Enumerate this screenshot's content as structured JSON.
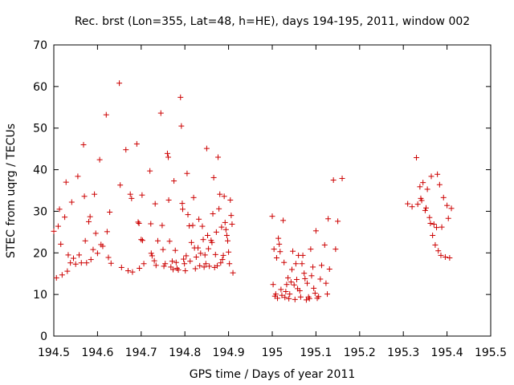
{
  "chart_data": {
    "type": "scatter",
    "title": "Rec. brst (Lon=355, Lat=48, h=HE), days 194-195, 2011, window 002",
    "xlabel": "GPS time / Days of year 2011",
    "ylabel": "STEC from uqrg / TECUs",
    "xlim": [
      194.5,
      195.5
    ],
    "ylim": [
      0,
      70
    ],
    "xticks": [
      194.5,
      194.6,
      194.7,
      194.8,
      194.9,
      195.0,
      195.1,
      195.2,
      195.3,
      195.4,
      195.5
    ],
    "xtick_labels": [
      "194.5",
      "194.6",
      "194.7",
      "194.8",
      "194.9",
      "195",
      "195.1",
      "195.2",
      "195.3",
      "195.4",
      "195.5"
    ],
    "yticks": [
      0,
      10,
      20,
      30,
      40,
      50,
      60,
      70
    ],
    "ytick_labels": [
      "0",
      "10",
      "20",
      "30",
      "40",
      "50",
      "60",
      "70"
    ],
    "grid": false,
    "marker": "+",
    "marker_color": "#cc0000",
    "series": [
      {
        "name": "STEC",
        "points": [
          [
            194.5,
            25.2
          ],
          [
            194.506,
            14.0
          ],
          [
            194.51,
            26.4
          ],
          [
            194.513,
            30.5
          ],
          [
            194.516,
            22.1
          ],
          [
            194.519,
            14.7
          ],
          [
            194.525,
            28.6
          ],
          [
            194.528,
            37.0
          ],
          [
            194.531,
            15.6
          ],
          [
            194.533,
            19.5
          ],
          [
            194.538,
            17.6
          ],
          [
            194.541,
            32.2
          ],
          [
            194.545,
            18.7
          ],
          [
            194.55,
            17.3
          ],
          [
            194.555,
            38.4
          ],
          [
            194.558,
            19.5
          ],
          [
            194.563,
            17.6
          ],
          [
            194.568,
            46.0
          ],
          [
            194.57,
            33.6
          ],
          [
            194.572,
            22.9
          ],
          [
            194.575,
            17.6
          ],
          [
            194.58,
            27.5
          ],
          [
            194.583,
            28.7
          ],
          [
            194.585,
            18.4
          ],
          [
            194.59,
            20.8
          ],
          [
            194.593,
            34.1
          ],
          [
            194.596,
            24.7
          ],
          [
            194.6,
            19.9
          ],
          [
            194.605,
            42.4
          ],
          [
            194.608,
            22.0
          ],
          [
            194.612,
            21.6
          ],
          [
            194.62,
            53.2
          ],
          [
            194.622,
            25.1
          ],
          [
            194.625,
            18.9
          ],
          [
            194.628,
            29.8
          ],
          [
            194.631,
            17.5
          ],
          [
            194.65,
            60.8
          ],
          [
            194.652,
            36.3
          ],
          [
            194.655,
            16.5
          ],
          [
            194.665,
            44.8
          ],
          [
            194.67,
            15.7
          ],
          [
            194.675,
            34.1
          ],
          [
            194.678,
            33.1
          ],
          [
            194.68,
            15.4
          ],
          [
            194.69,
            46.2
          ],
          [
            194.693,
            27.4
          ],
          [
            194.695,
            27.1
          ],
          [
            194.696,
            16.3
          ],
          [
            194.7,
            23.2
          ],
          [
            194.702,
            33.9
          ],
          [
            194.703,
            23.0
          ],
          [
            194.706,
            17.4
          ],
          [
            194.72,
            39.7
          ],
          [
            194.722,
            27.0
          ],
          [
            194.723,
            19.9
          ],
          [
            194.725,
            19.3
          ],
          [
            194.73,
            18.1
          ],
          [
            194.732,
            31.8
          ],
          [
            194.734,
            17.0
          ],
          [
            194.738,
            22.9
          ],
          [
            194.745,
            53.6
          ],
          [
            194.748,
            26.6
          ],
          [
            194.75,
            20.8
          ],
          [
            194.752,
            16.8
          ],
          [
            194.755,
            17.4
          ],
          [
            194.76,
            43.9
          ],
          [
            194.762,
            43.0
          ],
          [
            194.763,
            32.7
          ],
          [
            194.765,
            22.8
          ],
          [
            194.768,
            16.6
          ],
          [
            194.771,
            18.0
          ],
          [
            194.773,
            16.0
          ],
          [
            194.775,
            37.3
          ],
          [
            194.778,
            20.6
          ],
          [
            194.78,
            17.7
          ],
          [
            194.782,
            16.3
          ],
          [
            194.785,
            15.9
          ],
          [
            194.79,
            57.4
          ],
          [
            194.792,
            50.5
          ],
          [
            194.794,
            31.9
          ],
          [
            194.795,
            30.5
          ],
          [
            194.797,
            18.5
          ],
          [
            194.799,
            17.4
          ],
          [
            194.801,
            15.7
          ],
          [
            194.803,
            19.3
          ],
          [
            194.805,
            39.1
          ],
          [
            194.807,
            29.2
          ],
          [
            194.81,
            26.5
          ],
          [
            194.812,
            18.0
          ],
          [
            194.815,
            22.5
          ],
          [
            194.818,
            26.6
          ],
          [
            194.82,
            33.3
          ],
          [
            194.822,
            21.2
          ],
          [
            194.824,
            16.2
          ],
          [
            194.826,
            19.0
          ],
          [
            194.83,
            21.2
          ],
          [
            194.832,
            28.1
          ],
          [
            194.834,
            16.9
          ],
          [
            194.836,
            19.9
          ],
          [
            194.84,
            26.4
          ],
          [
            194.842,
            23.2
          ],
          [
            194.844,
            16.6
          ],
          [
            194.846,
            19.5
          ],
          [
            194.848,
            17.4
          ],
          [
            194.85,
            45.1
          ],
          [
            194.852,
            24.2
          ],
          [
            194.854,
            21.0
          ],
          [
            194.856,
            16.8
          ],
          [
            194.86,
            23.0
          ],
          [
            194.862,
            22.5
          ],
          [
            194.864,
            29.4
          ],
          [
            194.866,
            38.1
          ],
          [
            194.868,
            16.5
          ],
          [
            194.87,
            19.6
          ],
          [
            194.872,
            25.0
          ],
          [
            194.874,
            16.9
          ],
          [
            194.876,
            43.0
          ],
          [
            194.878,
            30.6
          ],
          [
            194.88,
            34.1
          ],
          [
            194.882,
            17.6
          ],
          [
            194.884,
            26.2
          ],
          [
            194.886,
            18.4
          ],
          [
            194.888,
            19.4
          ],
          [
            194.89,
            33.6
          ],
          [
            194.892,
            27.3
          ],
          [
            194.894,
            25.6
          ],
          [
            194.896,
            24.2
          ],
          [
            194.898,
            22.9
          ],
          [
            194.9,
            20.2
          ],
          [
            194.902,
            17.4
          ],
          [
            194.904,
            32.7
          ],
          [
            194.906,
            29.0
          ],
          [
            194.908,
            26.9
          ],
          [
            194.91,
            15.2
          ],
          [
            195.0,
            28.8
          ],
          [
            195.002,
            12.4
          ],
          [
            195.004,
            20.9
          ],
          [
            195.006,
            9.6
          ],
          [
            195.008,
            10.1
          ],
          [
            195.01,
            18.8
          ],
          [
            195.012,
            9.1
          ],
          [
            195.014,
            23.5
          ],
          [
            195.016,
            22.1
          ],
          [
            195.018,
            20.3
          ],
          [
            195.02,
            11.2
          ],
          [
            195.022,
            9.8
          ],
          [
            195.025,
            27.8
          ],
          [
            195.027,
            17.7
          ],
          [
            195.029,
            9.3
          ],
          [
            195.031,
            10.7
          ],
          [
            195.033,
            12.4
          ],
          [
            195.036,
            14.0
          ],
          [
            195.038,
            9.0
          ],
          [
            195.04,
            10.1
          ],
          [
            195.043,
            13.0
          ],
          [
            195.045,
            16.0
          ],
          [
            195.047,
            20.4
          ],
          [
            195.05,
            12.3
          ],
          [
            195.052,
            8.8
          ],
          [
            195.054,
            17.4
          ],
          [
            195.056,
            13.6
          ],
          [
            195.058,
            11.4
          ],
          [
            195.06,
            19.4
          ],
          [
            195.063,
            10.9
          ],
          [
            195.065,
            9.4
          ],
          [
            195.068,
            17.4
          ],
          [
            195.07,
            19.4
          ],
          [
            195.073,
            15.1
          ],
          [
            195.075,
            13.8
          ],
          [
            195.078,
            8.7
          ],
          [
            195.08,
            12.7
          ],
          [
            195.083,
            9.4
          ],
          [
            195.085,
            9.0
          ],
          [
            195.088,
            20.9
          ],
          [
            195.09,
            14.5
          ],
          [
            195.093,
            16.6
          ],
          [
            195.095,
            11.5
          ],
          [
            195.098,
            10.3
          ],
          [
            195.1,
            25.3
          ],
          [
            195.103,
            9.1
          ],
          [
            195.106,
            9.5
          ],
          [
            195.11,
            13.7
          ],
          [
            195.113,
            17.0
          ],
          [
            195.12,
            21.9
          ],
          [
            195.123,
            12.7
          ],
          [
            195.126,
            10.1
          ],
          [
            195.128,
            28.2
          ],
          [
            195.131,
            16.1
          ],
          [
            195.14,
            37.5
          ],
          [
            195.145,
            20.9
          ],
          [
            195.15,
            27.6
          ],
          [
            195.16,
            37.9
          ],
          [
            195.31,
            31.8
          ],
          [
            195.32,
            31.1
          ],
          [
            195.33,
            42.9
          ],
          [
            195.333,
            31.7
          ],
          [
            195.338,
            35.9
          ],
          [
            195.34,
            33.1
          ],
          [
            195.342,
            32.6
          ],
          [
            195.345,
            36.9
          ],
          [
            195.35,
            30.2
          ],
          [
            195.352,
            30.8
          ],
          [
            195.355,
            35.3
          ],
          [
            195.36,
            28.5
          ],
          [
            195.362,
            27.1
          ],
          [
            195.364,
            38.4
          ],
          [
            195.367,
            24.2
          ],
          [
            195.37,
            26.9
          ],
          [
            195.373,
            21.9
          ],
          [
            195.376,
            26.1
          ],
          [
            195.378,
            38.9
          ],
          [
            195.38,
            20.5
          ],
          [
            195.383,
            36.4
          ],
          [
            195.386,
            19.4
          ],
          [
            195.388,
            26.2
          ],
          [
            195.392,
            33.3
          ],
          [
            195.396,
            19.0
          ],
          [
            195.4,
            31.4
          ],
          [
            195.403,
            28.3
          ],
          [
            195.406,
            18.8
          ],
          [
            195.41,
            30.7
          ]
        ]
      }
    ]
  }
}
